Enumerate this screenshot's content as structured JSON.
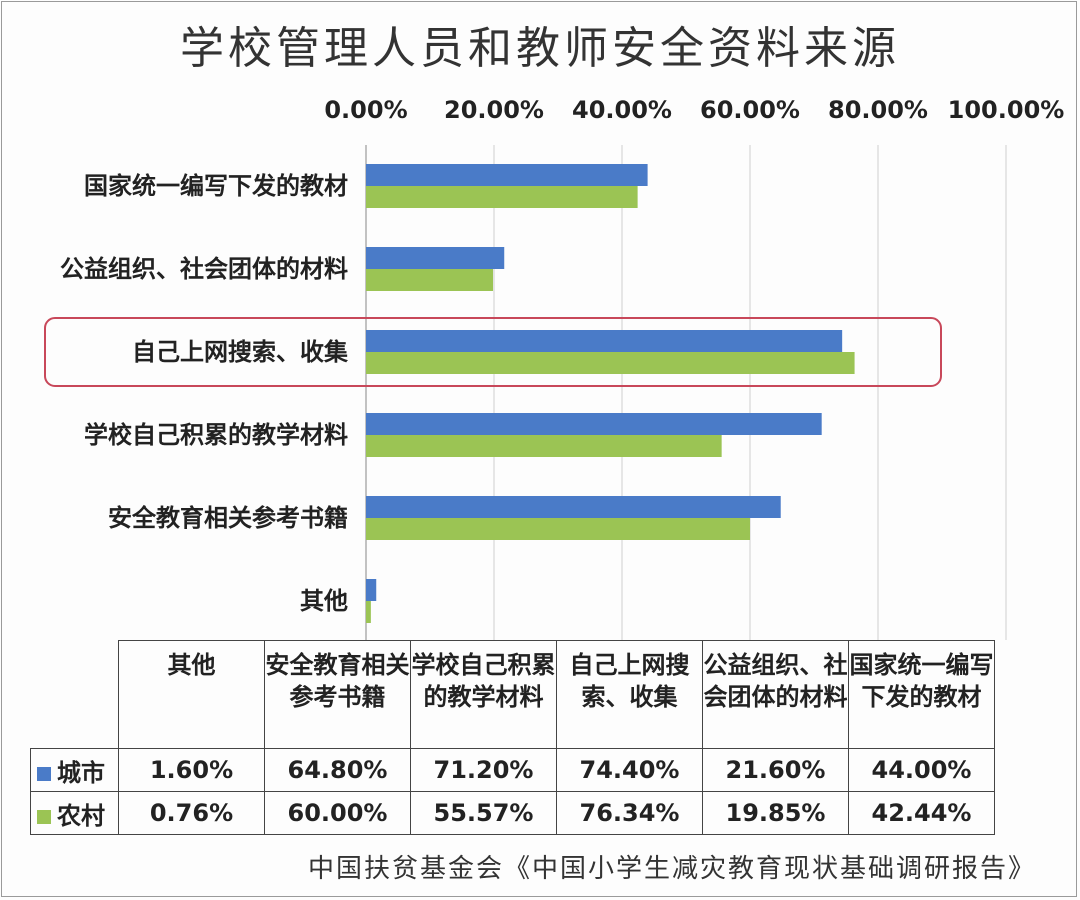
{
  "title": "学校管理人员和教师安全资料来源",
  "source": "中国扶贫基金会《中国小学生减灾教育现状基础调研报告》",
  "colors": {
    "urban": "#4a7bc8",
    "rural": "#9bc454",
    "highlight": "#c8485a"
  },
  "chart_data": {
    "type": "bar",
    "orientation": "horizontal",
    "title": "学校管理人员和教师安全资料来源",
    "xlim": [
      0,
      100
    ],
    "x_ticks": [
      "0.00%",
      "20.00%",
      "40.00%",
      "60.00%",
      "80.00%",
      "100.00%"
    ],
    "x_axis_position": "top",
    "grid": true,
    "categories": [
      "国家统一编写下发的教材",
      "公益组织、社会团体的材料",
      "自己上网搜索、收集",
      "学校自己积累的教学材料",
      "安全教育相关参考书籍",
      "其他"
    ],
    "highlighted_category": "自己上网搜索、收集",
    "series": [
      {
        "name": "城市",
        "values": [
          44.0,
          21.6,
          74.4,
          71.2,
          64.8,
          1.6
        ]
      },
      {
        "name": "农村",
        "values": [
          42.44,
          19.85,
          76.34,
          55.57,
          60.0,
          0.76
        ]
      }
    ]
  },
  "table": {
    "headers": [
      "其他",
      "安全教育相关参考书籍",
      "学校自己积累的教学材料",
      "自己上网搜索、收集",
      "公益组织、社会团体的材料",
      "国家统一编写下发的教材"
    ],
    "rows": [
      {
        "series": "城市",
        "values": [
          "1.60%",
          "64.80%",
          "71.20%",
          "74.40%",
          "21.60%",
          "44.00%"
        ]
      },
      {
        "series": "农村",
        "values": [
          "0.76%",
          "60.00%",
          "55.57%",
          "76.34%",
          "19.85%",
          "42.44%"
        ]
      }
    ]
  }
}
